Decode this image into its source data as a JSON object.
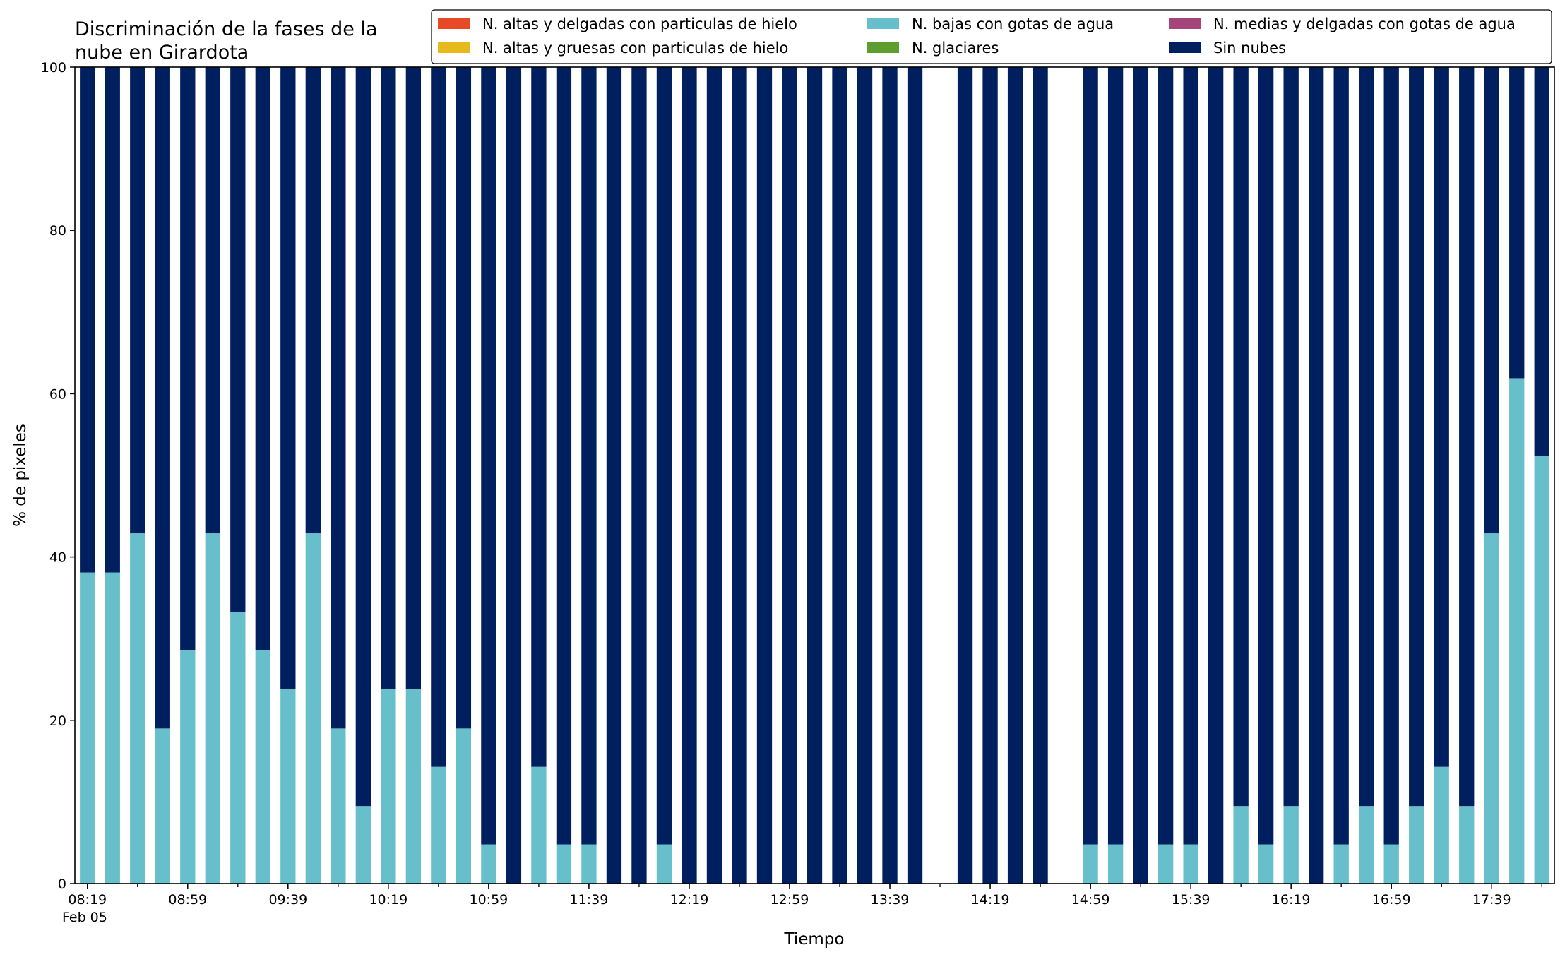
{
  "chart_data": {
    "type": "bar",
    "stacked": true,
    "title_lines": [
      "Discriminación de la fases de la",
      "nube en Girardota"
    ],
    "xlabel": "Tiempo",
    "ylabel": "% de pixeles",
    "ylim": [
      0,
      100
    ],
    "yticks": [
      "0",
      "20",
      "40",
      "60",
      "80",
      "100"
    ],
    "xtick_labels": [
      "08:19",
      "08:59",
      "09:39",
      "10:19",
      "10:59",
      "11:39",
      "12:19",
      "12:59",
      "13:39",
      "14:19",
      "14:59",
      "15:39",
      "16:19",
      "16:59",
      "17:39"
    ],
    "x_date_label": "Feb 05",
    "grid": false,
    "legend_position": "top-right",
    "times": [
      "08:19",
      "08:29",
      "08:39",
      "08:49",
      "08:59",
      "09:09",
      "09:19",
      "09:29",
      "09:39",
      "09:49",
      "09:59",
      "10:09",
      "10:19",
      "10:29",
      "10:39",
      "10:49",
      "10:59",
      "11:09",
      "11:19",
      "11:29",
      "11:39",
      "11:49",
      "11:59",
      "12:09",
      "12:19",
      "12:29",
      "12:39",
      "12:49",
      "12:59",
      "13:09",
      "13:19",
      "13:29",
      "13:39",
      "13:49",
      "14:09",
      "14:19",
      "14:29",
      "14:39",
      "14:49",
      "14:59",
      "15:09",
      "15:19",
      "15:29",
      "15:39",
      "15:49",
      "15:59",
      "16:09",
      "16:19",
      "16:29",
      "16:39",
      "16:49",
      "16:59",
      "17:09",
      "17:19",
      "17:29",
      "17:39",
      "17:49",
      "17:59"
    ],
    "series": [
      {
        "name": "N. altas y delgadas con particulas de hielo",
        "color": "#e84a27",
        "values": [
          0,
          0,
          0,
          0,
          0,
          0,
          0,
          0,
          0,
          0,
          0,
          0,
          0,
          0,
          0,
          0,
          0,
          0,
          0,
          0,
          0,
          0,
          0,
          0,
          0,
          0,
          0,
          0,
          0,
          0,
          0,
          0,
          0,
          0,
          0,
          0,
          0,
          0,
          0,
          0,
          0,
          0,
          0,
          0,
          0,
          0,
          0,
          0,
          0,
          0,
          0,
          0,
          0,
          0,
          0,
          0,
          0,
          0
        ]
      },
      {
        "name": "N. altas y gruesas con particulas de hielo",
        "color": "#e6b91e",
        "values": [
          0,
          0,
          0,
          0,
          0,
          0,
          0,
          0,
          0,
          0,
          0,
          0,
          0,
          0,
          0,
          0,
          0,
          0,
          0,
          0,
          0,
          0,
          0,
          0,
          0,
          0,
          0,
          0,
          0,
          0,
          0,
          0,
          0,
          0,
          0,
          0,
          0,
          0,
          0,
          0,
          0,
          0,
          0,
          0,
          0,
          0,
          0,
          0,
          0,
          0,
          0,
          0,
          0,
          0,
          0,
          0,
          0,
          0
        ]
      },
      {
        "name": "N. bajas con gotas de agua",
        "color": "#66bfca",
        "values": [
          38.1,
          38.1,
          42.9,
          19.0,
          28.6,
          42.9,
          33.3,
          28.6,
          23.8,
          42.9,
          19.0,
          9.5,
          23.8,
          23.8,
          14.3,
          19.0,
          4.8,
          0,
          14.3,
          4.8,
          4.8,
          0,
          0,
          4.8,
          0,
          0,
          0,
          0,
          0,
          0,
          0,
          0,
          0,
          0,
          0,
          0,
          0,
          0,
          0,
          4.8,
          4.8,
          0,
          4.8,
          4.8,
          0,
          9.5,
          4.8,
          9.5,
          0,
          4.8,
          9.5,
          4.8,
          9.5,
          14.3,
          9.5,
          42.9,
          61.9,
          52.4
        ]
      },
      {
        "name": "N. glaciares",
        "color": "#5e9e2e",
        "values": [
          0,
          0,
          0,
          0,
          0,
          0,
          0,
          0,
          0,
          0,
          0,
          0,
          0,
          0,
          0,
          0,
          0,
          0,
          0,
          0,
          0,
          0,
          0,
          0,
          0,
          0,
          0,
          0,
          0,
          0,
          0,
          0,
          0,
          0,
          0,
          0,
          0,
          0,
          0,
          0,
          0,
          0,
          0,
          0,
          0,
          0,
          0,
          0,
          0,
          0,
          0,
          0,
          0,
          0,
          0,
          0,
          0,
          0
        ]
      },
      {
        "name": "N. medias y delgadas con gotas de agua",
        "color": "#a3457a",
        "values": [
          0,
          0,
          0,
          0,
          0,
          0,
          0,
          0,
          0,
          0,
          0,
          0,
          0,
          0,
          0,
          0,
          0,
          0,
          0,
          0,
          0,
          0,
          0,
          0,
          0,
          0,
          0,
          0,
          0,
          0,
          0,
          0,
          0,
          0,
          0,
          0,
          0,
          0,
          0,
          0,
          0,
          0,
          0,
          0,
          0,
          0,
          0,
          0,
          0,
          0,
          0,
          0,
          0,
          0,
          0,
          0,
          0,
          0
        ]
      },
      {
        "name": "Sin nubes",
        "color": "#001f5e",
        "values": [
          61.9,
          61.9,
          57.1,
          81.0,
          71.4,
          57.1,
          66.7,
          71.4,
          76.2,
          57.1,
          81.0,
          90.5,
          76.2,
          76.2,
          85.7,
          81.0,
          95.2,
          100,
          85.7,
          95.2,
          95.2,
          100,
          100,
          95.2,
          100,
          100,
          100,
          100,
          100,
          100,
          100,
          100,
          100,
          100,
          100,
          100,
          100,
          100,
          0,
          95.2,
          95.2,
          100,
          95.2,
          95.2,
          100,
          90.5,
          95.2,
          90.5,
          100,
          95.2,
          90.5,
          95.2,
          90.5,
          85.7,
          90.5,
          57.1,
          38.1,
          47.6
        ]
      }
    ],
    "legend_order": [
      0,
      1,
      2,
      3,
      4,
      5
    ]
  }
}
